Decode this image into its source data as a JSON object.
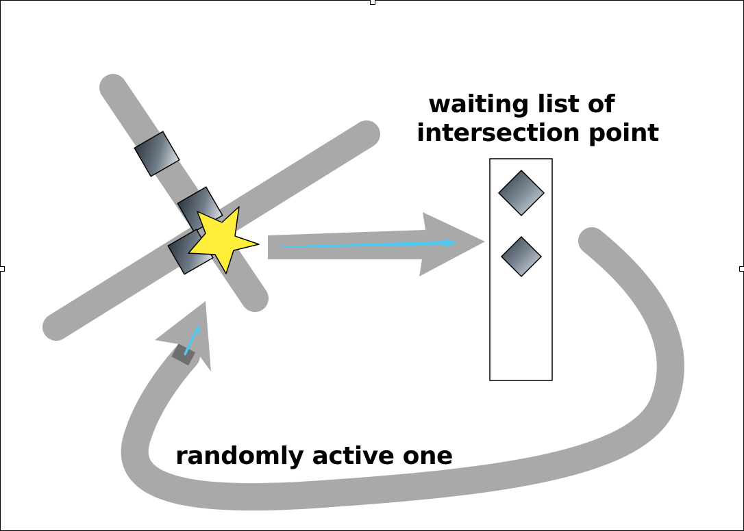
{
  "labels": {
    "waiting_line1": "waiting list of",
    "waiting_line2": "intersection point",
    "random": "randomly active one"
  },
  "colors": {
    "road": "#a9a9a9",
    "arrow_accent": "#4fc8f0",
    "star_fill": "#ffef3a",
    "square_dark": "#3a4550",
    "square_light": "#d6dbe2"
  },
  "icons": {
    "star": "star-icon",
    "square": "square-marker-icon",
    "diamond": "diamond-marker-icon"
  }
}
